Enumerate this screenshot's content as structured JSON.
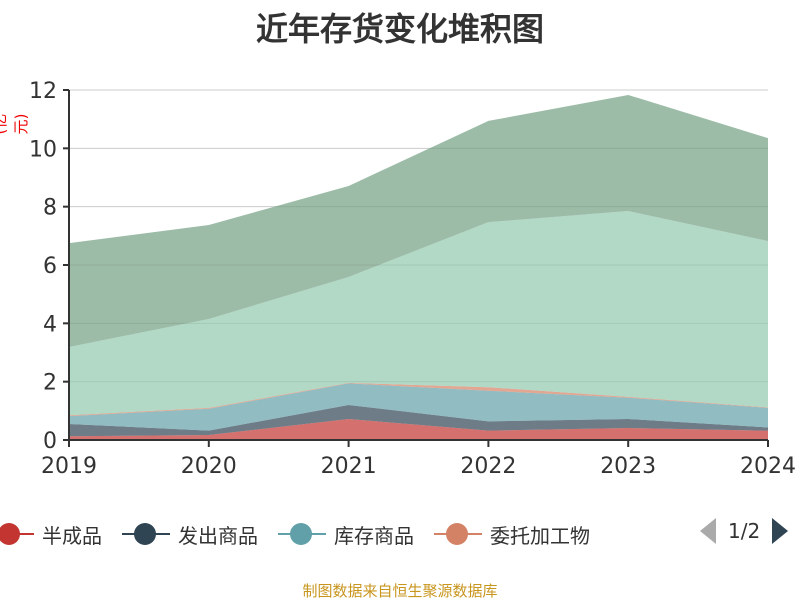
{
  "chart_data": {
    "type": "area",
    "stacked": true,
    "title": "近年存货变化堆积图",
    "ylabel": "(亿元)",
    "xlabel": "",
    "ylim": [
      0,
      12
    ],
    "yticks": [
      "0",
      "2",
      "4",
      "6",
      "8",
      "10",
      "12"
    ],
    "categories": [
      "2019",
      "2020",
      "2021",
      "2022",
      "2023",
      "2024"
    ],
    "grid": true,
    "legend_position": "bottom",
    "series": [
      {
        "name": "半成品",
        "color": "#c23531",
        "values": [
          0.13,
          0.17,
          0.72,
          0.32,
          0.41,
          0.32
        ]
      },
      {
        "name": "发出商品",
        "color": "#2f4554",
        "values": [
          0.42,
          0.15,
          0.48,
          0.32,
          0.31,
          0.11
        ]
      },
      {
        "name": "库存商品",
        "color": "#61a0a8",
        "values": [
          0.27,
          0.75,
          0.74,
          1.05,
          0.73,
          0.67
        ]
      },
      {
        "name": "委托加工物",
        "color": "#d48265",
        "values": [
          0.03,
          0.03,
          0.02,
          0.12,
          0.03,
          0.02
        ]
      },
      {
        "name": null,
        "color": "#91c7ae",
        "values": [
          2.34,
          3.05,
          3.63,
          5.66,
          6.37,
          5.7
        ]
      },
      {
        "name": null,
        "color": "#749f83",
        "values": [
          3.56,
          3.22,
          3.12,
          3.47,
          3.98,
          3.53
        ]
      }
    ]
  },
  "legend": {
    "page": "1/2"
  },
  "source": "制图数据来自恒生聚源数据库"
}
